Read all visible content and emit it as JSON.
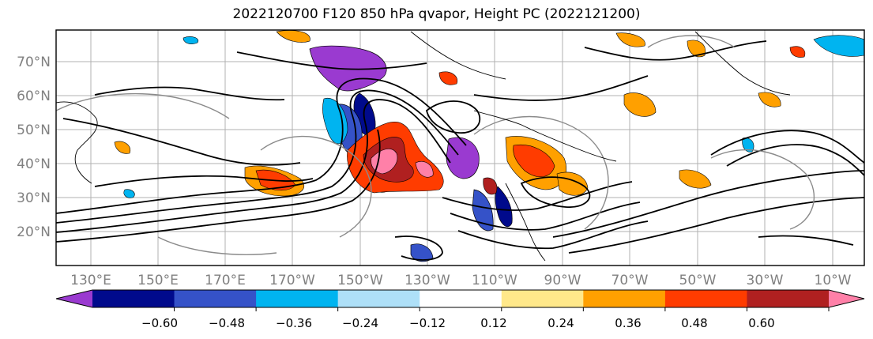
{
  "title": "2022120700 F120 850 hPa qvapor, Height PC (2022121200)",
  "map": {
    "lat_labels": [
      "70°N",
      "60°N",
      "50°N",
      "40°N",
      "30°N",
      "20°N"
    ],
    "lon_labels": [
      "130°E",
      "150°E",
      "170°E",
      "170°W",
      "150°W",
      "130°W",
      "110°W",
      "90°W",
      "70°W",
      "50°W",
      "30°W",
      "10°W"
    ]
  },
  "colorbar": {
    "ticks": [
      "−0.60",
      "−0.48",
      "−0.36",
      "−0.24",
      "−0.12",
      "0.12",
      "0.24",
      "0.36",
      "0.48",
      "0.60"
    ],
    "colors": [
      "#9a3ad0",
      "#000a8c",
      "#3552c8",
      "#00b4f0",
      "#aee0f8",
      "#ffffff",
      "#ffe88a",
      "#ffa000",
      "#ff3c00",
      "#b02020",
      "#ff80a8"
    ],
    "extend": "both"
  }
}
